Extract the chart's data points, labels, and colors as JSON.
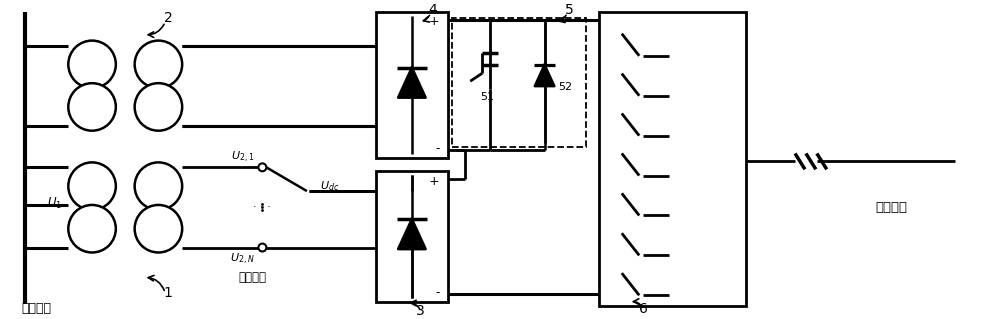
{
  "bg_color": "#ffffff",
  "fig_width": 10.0,
  "fig_height": 3.19,
  "labels": {
    "U1": "$U_1$",
    "Udc": "$U_{dc}$",
    "U2I": "$U_{2,1}$",
    "U2N": "$U_{2,N}$",
    "side_tap": "副边抄头",
    "ac_grid": "交流电网",
    "ice_line": "覆冰线路",
    "num1": "1",
    "num2": "2",
    "num3": "3",
    "num4": "4",
    "num5": "5",
    "num6": "6",
    "num51": "51",
    "num52": "52",
    "plus": "+",
    "minus": "-"
  }
}
